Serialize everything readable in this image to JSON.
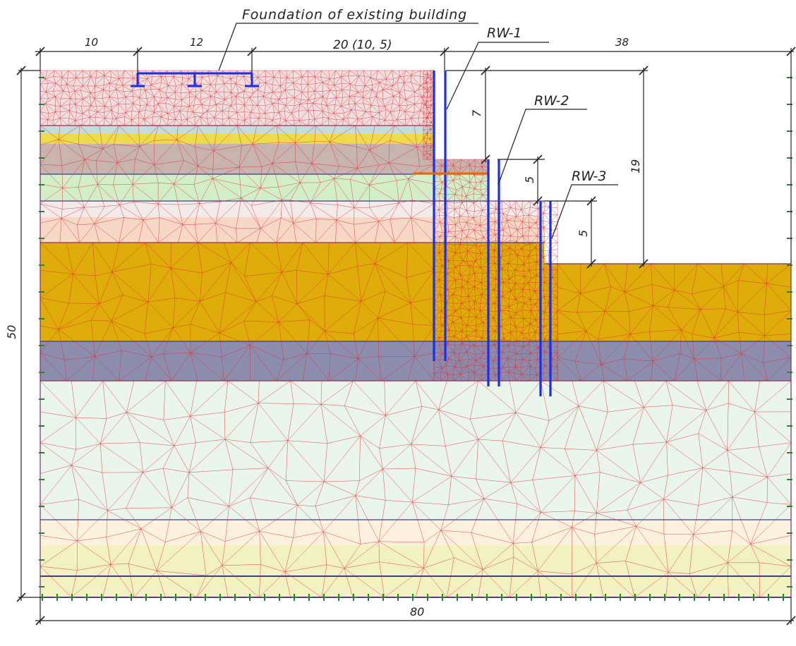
{
  "labels": {
    "foundation": "Foundation of existing building",
    "rw1": "RW-1",
    "rw2": "RW-2",
    "rw3": "RW-3"
  },
  "dimensions": {
    "d_10": "10",
    "d_12": "12",
    "d_20": "20 (10, 5)",
    "d_38": "38",
    "d_7": "7",
    "d_5a": "5",
    "d_5b": "5",
    "d_19": "19",
    "d_50": "50",
    "d_80": "80"
  },
  "colors": {
    "mesh": "#e0262b",
    "wall": "#1b2ef0",
    "boundary": "#2e7d32",
    "fill_layer": "#f2dede",
    "clay_blue": "#c4dcdc",
    "sand_yellow": "#ecdc4c",
    "silt_brown": "#c8b4ae",
    "loam_green": "#d2eec8",
    "light_layer": "#f3ebe9",
    "peach_layer": "#f7d7c5",
    "gravel_orange": "#deac08",
    "dense_purple": "#8c8cac",
    "pale_green": "#e9f4ea",
    "cream_layer": "#fbf1dc",
    "pale_yellow": "#f2f1c2"
  }
}
